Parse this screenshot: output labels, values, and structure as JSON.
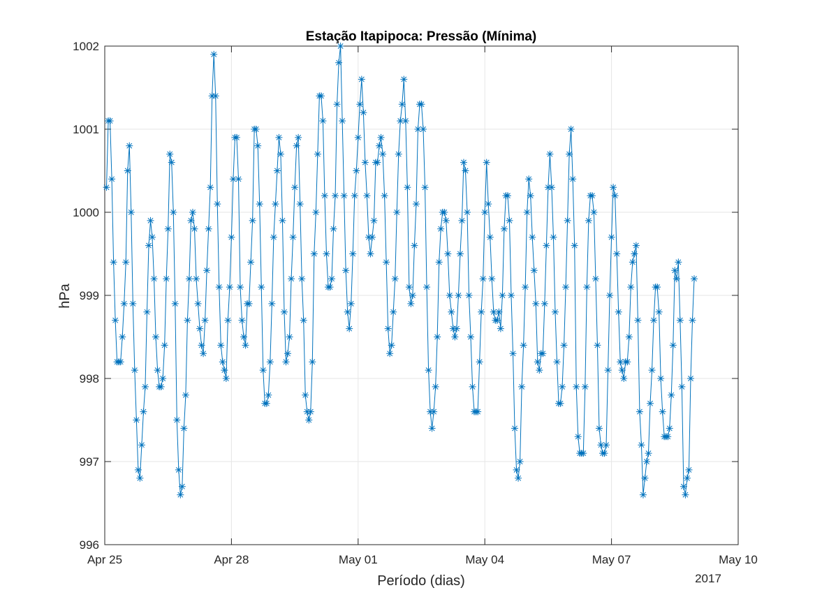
{
  "chart_data": {
    "type": "line",
    "title": "Estação Itapipoca: Pressão (Mínima)",
    "xlabel": "Período (dias)",
    "ylabel": "hPa",
    "x_year_label": "2017",
    "x_start": "Apr 25",
    "x_unit": "hours",
    "xlim": [
      0,
      360
    ],
    "ylim": [
      996,
      1002
    ],
    "grid": true,
    "marker": "asterisk",
    "x_ticks": [
      {
        "x": 0,
        "label": "Apr 25"
      },
      {
        "x": 72,
        "label": "Apr 28"
      },
      {
        "x": 144,
        "label": "May 01"
      },
      {
        "x": 216,
        "label": "May 04"
      },
      {
        "x": 288,
        "label": "May 07"
      },
      {
        "x": 360,
        "label": "May 10"
      }
    ],
    "y_ticks": [
      {
        "y": 996,
        "label": "996"
      },
      {
        "y": 997,
        "label": "997"
      },
      {
        "y": 998,
        "label": "998"
      },
      {
        "y": 999,
        "label": "999"
      },
      {
        "y": 1000,
        "label": "1000"
      },
      {
        "y": 1001,
        "label": "1001"
      },
      {
        "y": 1002,
        "label": "1002"
      }
    ],
    "series": [
      {
        "name": "",
        "color": "#0072BD",
        "x_start_hour": 1,
        "x_step_hours": 1,
        "values": [
          1000.3,
          1001.1,
          1001.1,
          1000.4,
          999.4,
          998.7,
          998.2,
          998.2,
          998.2,
          998.5,
          998.9,
          999.4,
          1000.5,
          1000.8,
          1000.0,
          998.9,
          998.1,
          997.5,
          996.9,
          996.8,
          997.2,
          997.6,
          997.9,
          998.8,
          999.6,
          999.9,
          999.7,
          999.2,
          998.5,
          998.1,
          997.9,
          997.9,
          998.0,
          998.4,
          999.2,
          999.8,
          1000.7,
          1000.6,
          1000.0,
          998.9,
          997.5,
          996.9,
          996.6,
          996.7,
          997.4,
          997.8,
          998.7,
          999.2,
          999.9,
          1000.0,
          999.8,
          999.2,
          998.9,
          998.6,
          998.4,
          998.3,
          998.7,
          999.3,
          999.8,
          1000.3,
          1001.4,
          1001.9,
          1001.4,
          1000.1,
          999.1,
          998.4,
          998.2,
          998.1,
          998.0,
          998.7,
          999.1,
          999.7,
          1000.4,
          1000.9,
          1000.9,
          1000.4,
          999.1,
          998.7,
          998.5,
          998.4,
          998.9,
          998.9,
          999.4,
          999.9,
          1001.0,
          1001.0,
          1000.8,
          1000.1,
          999.1,
          998.1,
          997.7,
          997.7,
          997.8,
          998.2,
          998.9,
          999.7,
          1000.1,
          1000.5,
          1000.9,
          1000.7,
          999.9,
          998.8,
          998.2,
          998.3,
          998.5,
          999.2,
          999.7,
          1000.3,
          1000.8,
          1000.9,
          1000.1,
          999.2,
          998.7,
          997.8,
          997.6,
          997.5,
          997.6,
          998.2,
          999.5,
          1000.0,
          1000.7,
          1001.4,
          1001.4,
          1001.1,
          1000.2,
          999.5,
          999.1,
          999.1,
          999.2,
          999.8,
          1000.2,
          1001.3,
          1001.8,
          1002.0,
          1001.1,
          1000.2,
          999.3,
          998.8,
          998.6,
          998.9,
          999.5,
          1000.2,
          1000.5,
          1000.9,
          1001.3,
          1001.6,
          1001.2,
          1000.6,
          1000.2,
          999.7,
          999.5,
          999.7,
          999.9,
          1000.6,
          1000.6,
          1000.8,
          1000.9,
          1000.7,
          1000.2,
          999.4,
          998.6,
          998.3,
          998.4,
          998.8,
          999.2,
          1000.0,
          1000.7,
          1001.1,
          1001.3,
          1001.6,
          1001.1,
          1000.3,
          999.1,
          998.9,
          999.0,
          999.6,
          1000.1,
          1001.0,
          1001.3,
          1001.3,
          1001.0,
          1000.3,
          999.1,
          998.1,
          997.6,
          997.4,
          997.6,
          997.9,
          998.5,
          999.4,
          999.8,
          1000.0,
          1000.0,
          999.9,
          999.5,
          999.0,
          998.8,
          998.6,
          998.5,
          998.6,
          999.0,
          999.5,
          999.9,
          1000.6,
          1000.5,
          1000.0,
          999.0,
          998.5,
          997.9,
          997.6,
          997.6,
          997.6,
          998.2,
          998.8,
          999.2,
          1000.0,
          1000.6,
          1000.1,
          999.7,
          999.2,
          998.8,
          998.7,
          998.7,
          998.8,
          998.6,
          999.0,
          999.8,
          1000.2,
          1000.2,
          999.9,
          999.0,
          998.3,
          997.4,
          996.9,
          996.8,
          997.0,
          997.9,
          998.4,
          999.1,
          1000.0,
          1000.4,
          1000.2,
          999.7,
          999.3,
          998.9,
          998.2,
          998.1,
          998.3,
          998.3,
          998.9,
          999.6,
          1000.3,
          1000.7,
          1000.3,
          999.7,
          998.8,
          998.2,
          997.7,
          997.7,
          997.9,
          998.4,
          999.1,
          999.9,
          1000.7,
          1001.0,
          1000.4,
          999.6,
          997.9,
          997.3,
          997.1,
          997.1,
          997.1,
          997.9,
          999.1,
          999.9,
          1000.2,
          1000.2,
          1000.0,
          999.2,
          998.4,
          997.4,
          997.2,
          997.1,
          997.1,
          997.2,
          998.1,
          999.0,
          999.7,
          1000.3,
          1000.2,
          999.5,
          998.8,
          998.2,
          998.1,
          998.0,
          998.2,
          998.2,
          998.5,
          999.1,
          999.4,
          999.5,
          999.6,
          998.7,
          997.6,
          997.2,
          996.6,
          996.8,
          997.0,
          997.1,
          997.7,
          998.1,
          998.7,
          999.1,
          999.1,
          998.8,
          998.0,
          997.6,
          997.3,
          997.3,
          997.3,
          997.4,
          997.8,
          998.4,
          999.3,
          999.2,
          999.4,
          998.7,
          997.9,
          996.7,
          996.6,
          996.8,
          996.9,
          998.0,
          998.7,
          999.2
        ]
      }
    ]
  }
}
